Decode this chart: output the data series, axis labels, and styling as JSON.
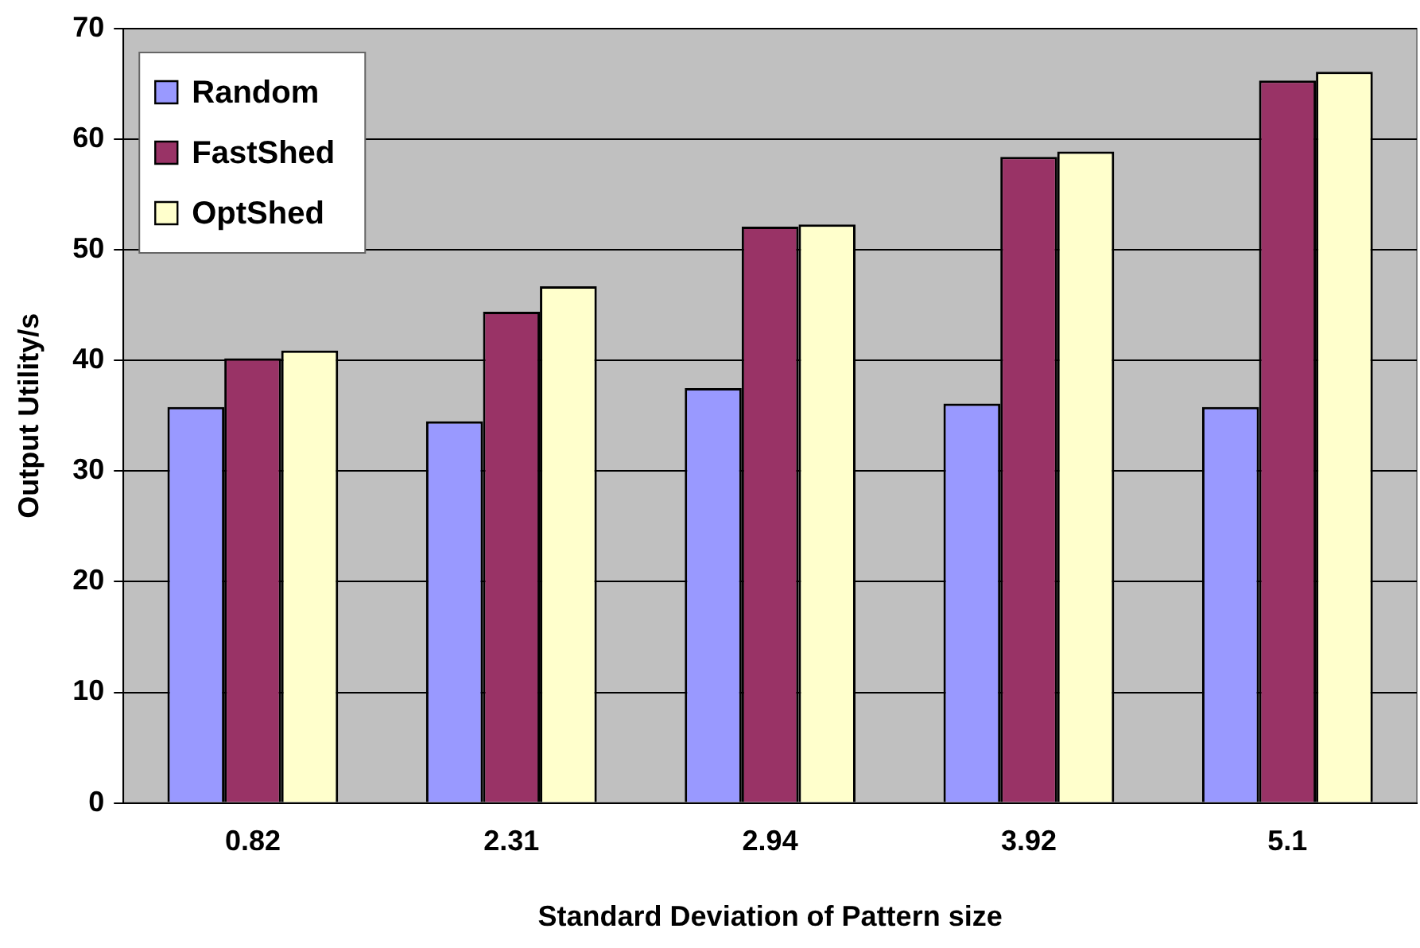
{
  "chart_data": {
    "type": "bar",
    "xlabel": "Standard Deviation of Pattern size",
    "ylabel": "Output Utility/s",
    "categories": [
      "0.82",
      "2.31",
      "2.94",
      "3.92",
      "5.1"
    ],
    "series": [
      {
        "name": "Random",
        "color": "#9999ff",
        "values": [
          35.8,
          34.5,
          37.5,
          36.1,
          35.8
        ]
      },
      {
        "name": "FastShed",
        "color": "#993366",
        "values": [
          40.2,
          44.4,
          52.1,
          58.4,
          65.3
        ]
      },
      {
        "name": "OptShed",
        "color": "#ffffcc",
        "values": [
          40.9,
          46.7,
          52.3,
          58.9,
          66.1
        ]
      }
    ],
    "ylim": [
      0,
      70
    ],
    "yticks": [
      0,
      10,
      20,
      30,
      40,
      50,
      60,
      70
    ],
    "grid": "y",
    "legend": "top left"
  }
}
